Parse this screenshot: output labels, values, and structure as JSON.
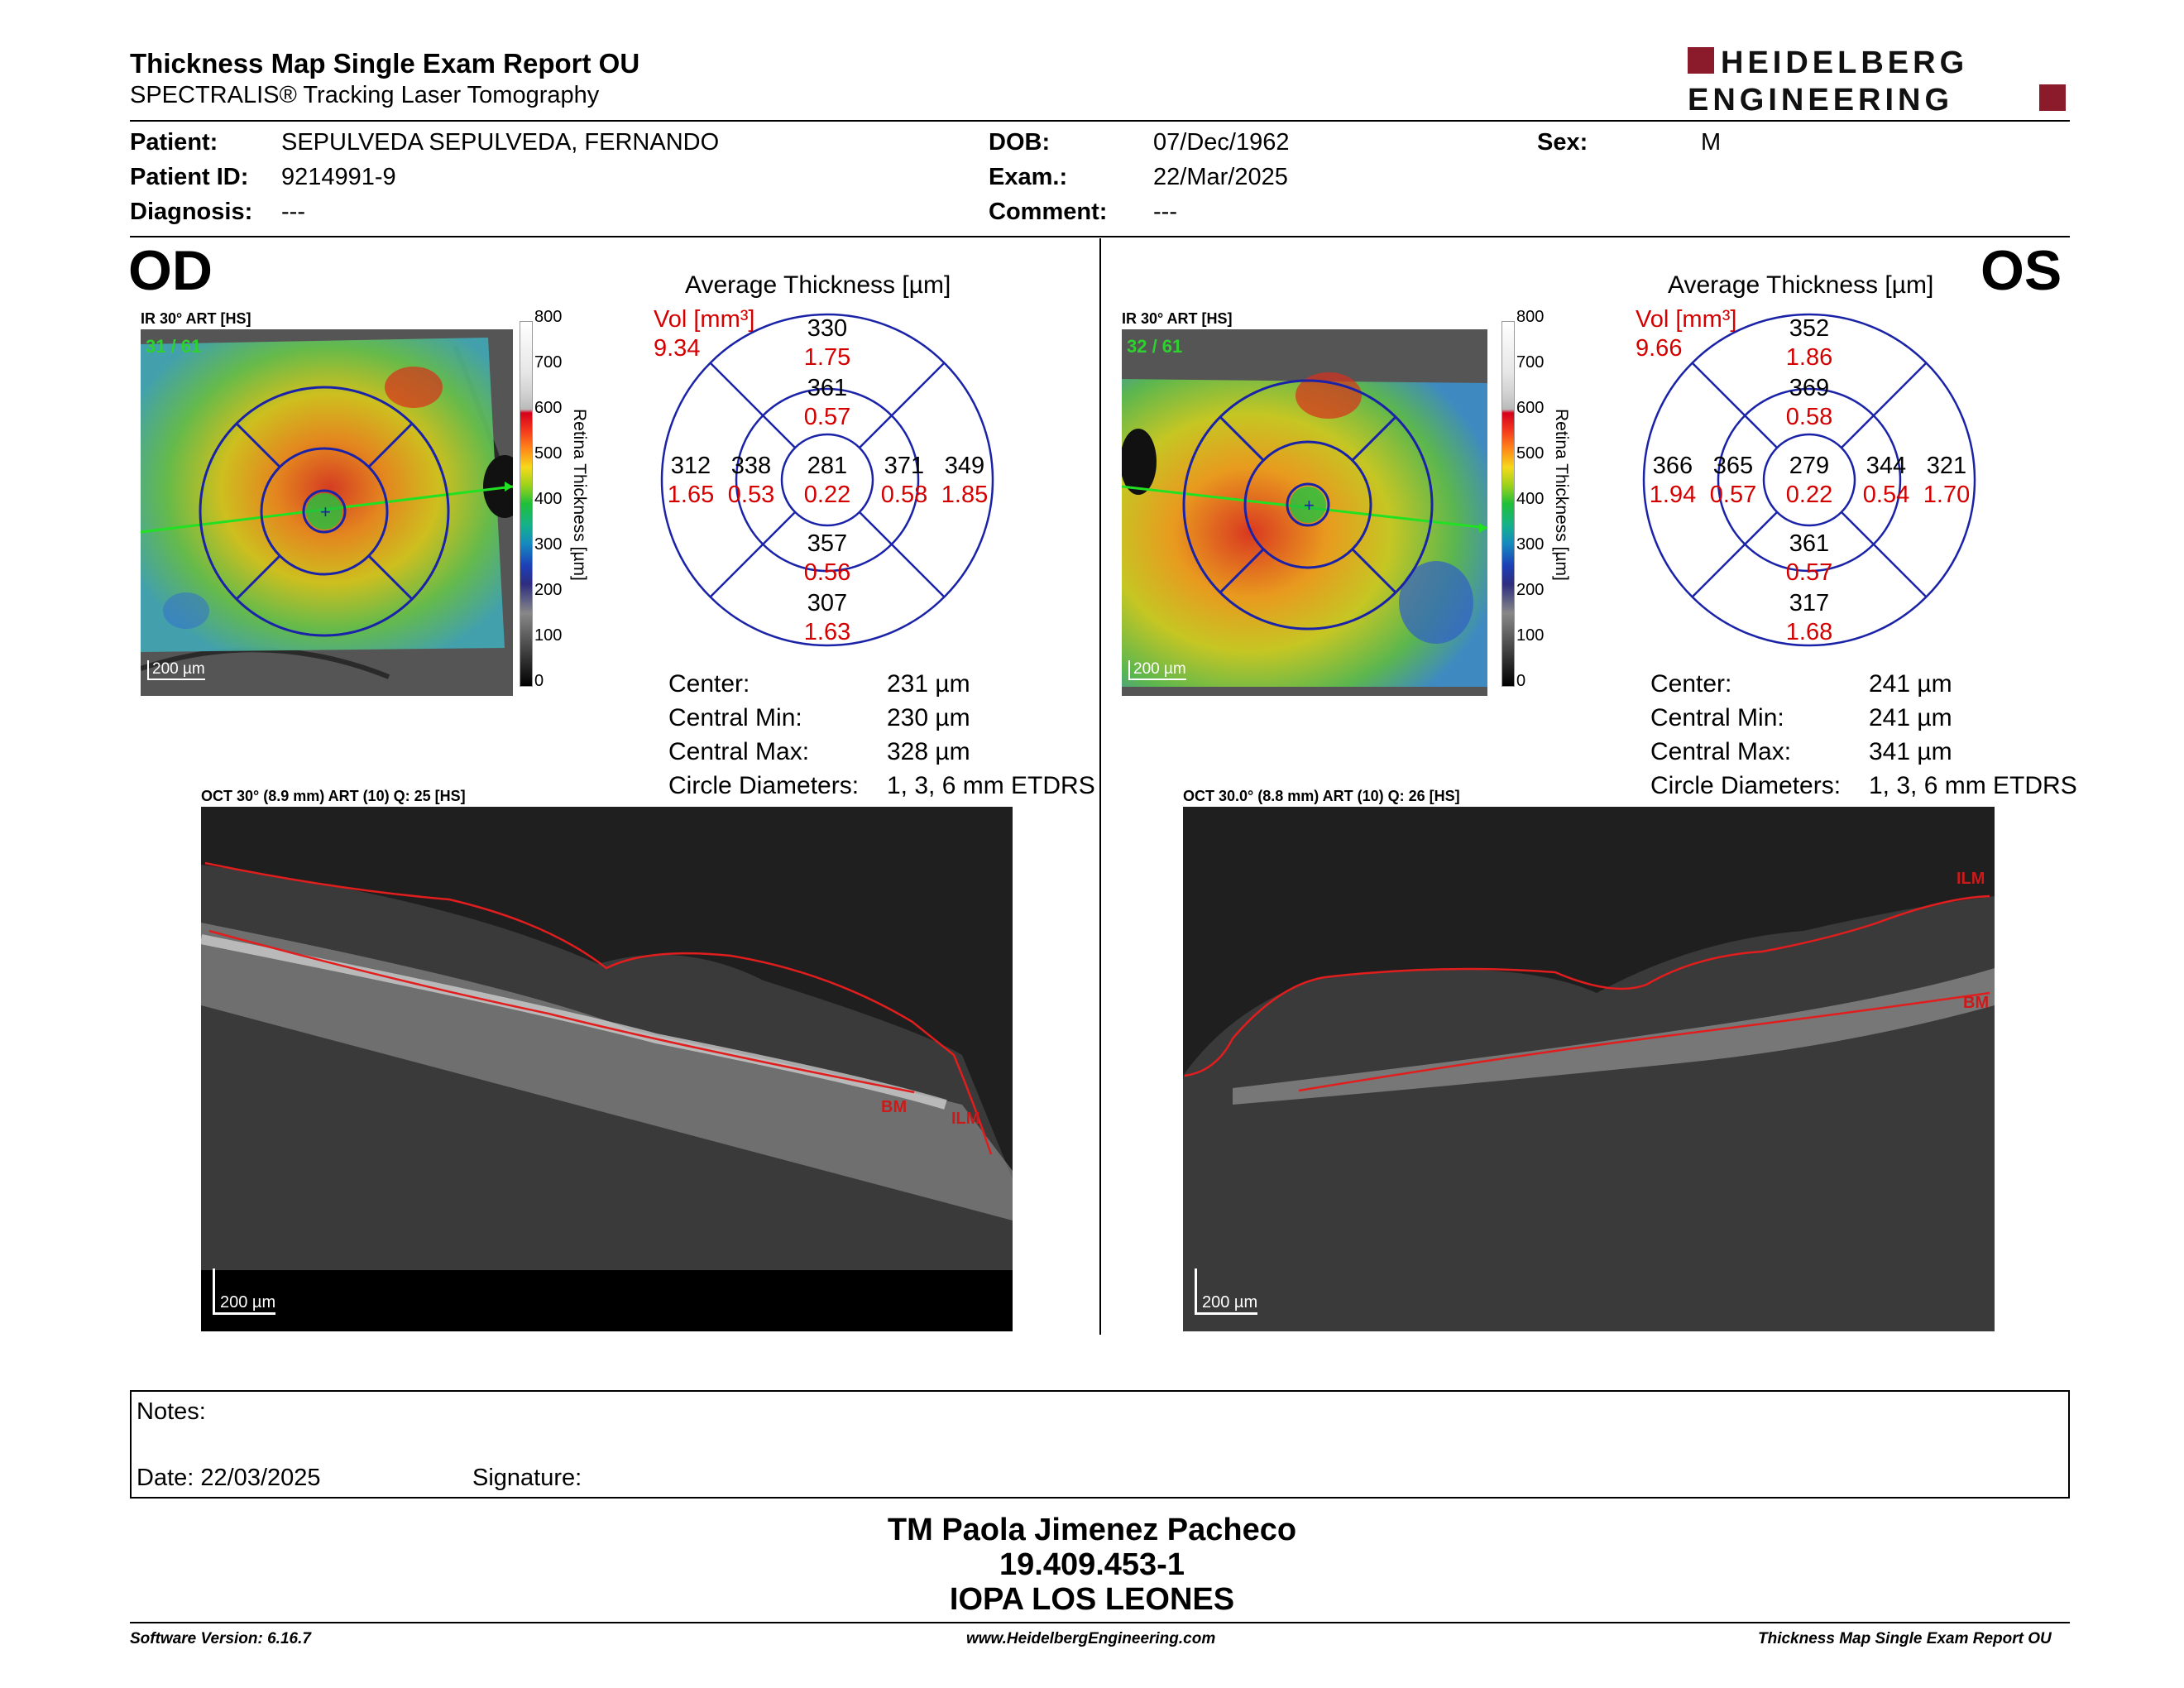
{
  "header": {
    "title": "Thickness Map Single Exam Report OU",
    "subtitle": "SPECTRALIS® Tracking Laser Tomography",
    "logo_line1": "HEIDELBERG",
    "logo_line2": "ENGINEERING"
  },
  "patient": {
    "patient_label": "Patient:",
    "patient_value": "SEPULVEDA SEPULVEDA, FERNANDO",
    "id_label": "Patient ID:",
    "id_value": "9214991-9",
    "diagnosis_label": "Diagnosis:",
    "diagnosis_value": "---",
    "dob_label": "DOB:",
    "dob_value": "07/Dec/1962",
    "exam_label": "Exam.:",
    "exam_value": "22/Mar/2025",
    "comment_label": "Comment:",
    "comment_value": "---",
    "sex_label": "Sex:",
    "sex_value": "M"
  },
  "od": {
    "eye": "OD",
    "ir_label": "IR 30° ART [HS]",
    "ir_counter": "31 / 61",
    "scale": "200 µm",
    "avg_title": "Average Thickness [µm]",
    "vol_label": "Vol [mm³]",
    "vol_value": "9.34",
    "sectors": {
      "center_t": "281",
      "center_v": "0.22",
      "inner_sup_t": "361",
      "inner_sup_v": "0.57",
      "inner_inf_t": "357",
      "inner_inf_v": "0.56",
      "inner_left_t": "338",
      "inner_left_v": "0.53",
      "inner_right_t": "371",
      "inner_right_v": "0.58",
      "outer_sup_t": "330",
      "outer_sup_v": "1.75",
      "outer_inf_t": "307",
      "outer_inf_v": "1.63",
      "outer_left_t": "312",
      "outer_left_v": "1.65",
      "outer_right_t": "349",
      "outer_right_v": "1.85"
    },
    "stats": {
      "center_label": "Center:",
      "center_value": "231 µm",
      "min_label": "Central Min:",
      "min_value": "230 µm",
      "max_label": "Central Max:",
      "max_value": "328 µm",
      "diam_label": "Circle Diameters:",
      "diam_value": "1, 3, 6 mm ETDRS"
    },
    "oct_label": "OCT 30° (8.9 mm) ART (10) Q: 25 [HS]",
    "oct_scale": "200 µm",
    "bm": "BM",
    "ilm": "ILM"
  },
  "os": {
    "eye": "OS",
    "ir_label": "IR 30° ART [HS]",
    "ir_counter": "32 / 61",
    "scale": "200 µm",
    "avg_title": "Average Thickness [µm]",
    "vol_label": "Vol [mm³]",
    "vol_value": "9.66",
    "sectors": {
      "center_t": "279",
      "center_v": "0.22",
      "inner_sup_t": "369",
      "inner_sup_v": "0.58",
      "inner_inf_t": "361",
      "inner_inf_v": "0.57",
      "inner_left_t": "365",
      "inner_left_v": "0.57",
      "inner_right_t": "344",
      "inner_right_v": "0.54",
      "outer_sup_t": "352",
      "outer_sup_v": "1.86",
      "outer_inf_t": "317",
      "outer_inf_v": "1.68",
      "outer_left_t": "366",
      "outer_left_v": "1.94",
      "outer_right_t": "321",
      "outer_right_v": "1.70"
    },
    "stats": {
      "center_label": "Center:",
      "center_value": "241 µm",
      "min_label": "Central Min:",
      "min_value": "241 µm",
      "max_label": "Central Max:",
      "max_value": "341 µm",
      "diam_label": "Circle Diameters:",
      "diam_value": "1, 3, 6 mm ETDRS"
    },
    "oct_label": "OCT 30.0° (8.8 mm) ART (10) Q: 26 [HS]",
    "oct_scale": "200 µm",
    "bm": "BM",
    "ilm": "ILM"
  },
  "colorbar": {
    "ticks": [
      "800",
      "700",
      "600",
      "500",
      "400",
      "300",
      "200",
      "100",
      "0"
    ],
    "label": "Retina Thickness [µm]"
  },
  "notes": {
    "notes_label": "Notes:",
    "date_label": "Date: 22/03/2025",
    "signature_label": "Signature:"
  },
  "signer": {
    "name": "TM Paola Jimenez Pacheco",
    "rut": "19.409.453-1",
    "org": "IOPA LOS LEONES"
  },
  "footer": {
    "version": "Software Version: 6.16.7",
    "url": "www.HeidelbergEngineering.com",
    "report": "Thickness Map Single Exam Report OU"
  }
}
